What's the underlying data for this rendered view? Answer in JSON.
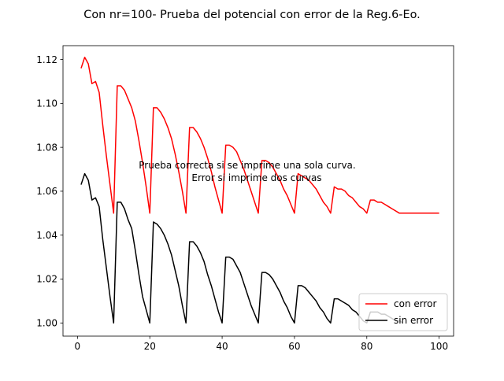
{
  "chart_data": {
    "type": "line",
    "title": "Con nr=100- Prueba del potencial con error de la Reg.6-Eo.",
    "xlabel": "",
    "ylabel": "",
    "xlim": [
      -4,
      104
    ],
    "ylim": [
      0.994,
      1.1263
    ],
    "xticks": [
      0,
      20,
      40,
      60,
      80,
      100
    ],
    "yticks": [
      1.0,
      1.02,
      1.04,
      1.06,
      1.08,
      1.1,
      1.12
    ],
    "ytick_labels": [
      "1.00",
      "1.02",
      "1.04",
      "1.06",
      "1.08",
      "1.10",
      "1.12"
    ],
    "annotation": [
      "Prueba correcta si se imprime una sola curva.",
      "Error si imprime dos curvas"
    ],
    "legend_position": "bottom-right",
    "grid": false,
    "series": [
      {
        "name": "con error",
        "color": "#ff0000",
        "x": [
          1,
          2,
          3,
          4,
          5,
          6,
          7,
          8,
          9,
          10,
          11,
          12,
          13,
          14,
          15,
          16,
          17,
          18,
          19,
          20,
          21,
          22,
          23,
          24,
          25,
          26,
          27,
          28,
          29,
          30,
          31,
          32,
          33,
          34,
          35,
          36,
          37,
          38,
          39,
          40,
          41,
          42,
          43,
          44,
          45,
          46,
          47,
          48,
          49,
          50,
          51,
          52,
          53,
          54,
          55,
          56,
          57,
          58,
          59,
          60,
          61,
          62,
          63,
          64,
          65,
          66,
          67,
          68,
          69,
          70,
          71,
          72,
          73,
          74,
          75,
          76,
          77,
          78,
          79,
          80,
          81,
          82,
          83,
          84,
          85,
          86,
          87,
          88,
          89,
          90,
          91,
          92,
          93,
          94,
          95,
          96,
          97,
          98,
          99,
          100
        ],
        "y": [
          1.116,
          1.121,
          1.118,
          1.109,
          1.11,
          1.105,
          1.09,
          1.076,
          1.063,
          1.05,
          1.108,
          1.108,
          1.106,
          1.102,
          1.098,
          1.092,
          1.083,
          1.073,
          1.062,
          1.05,
          1.098,
          1.098,
          1.096,
          1.093,
          1.089,
          1.084,
          1.077,
          1.069,
          1.06,
          1.05,
          1.089,
          1.089,
          1.087,
          1.084,
          1.08,
          1.075,
          1.069,
          1.062,
          1.056,
          1.05,
          1.081,
          1.081,
          1.08,
          1.078,
          1.074,
          1.07,
          1.065,
          1.06,
          1.055,
          1.05,
          1.074,
          1.074,
          1.073,
          1.071,
          1.068,
          1.065,
          1.061,
          1.058,
          1.054,
          1.05,
          1.068,
          1.067,
          1.066,
          1.065,
          1.063,
          1.061,
          1.058,
          1.055,
          1.053,
          1.05,
          1.062,
          1.061,
          1.061,
          1.06,
          1.058,
          1.057,
          1.055,
          1.053,
          1.052,
          1.05,
          1.056,
          1.056,
          1.055,
          1.055,
          1.054,
          1.053,
          1.052,
          1.051,
          1.05,
          1.05,
          1.05,
          1.05,
          1.05,
          1.05,
          1.05,
          1.05,
          1.05,
          1.05,
          1.05,
          1.05
        ]
      },
      {
        "name": "sin error",
        "color": "#000000",
        "x": [
          1,
          2,
          3,
          4,
          5,
          6,
          7,
          8,
          9,
          10,
          11,
          12,
          13,
          14,
          15,
          16,
          17,
          18,
          19,
          20,
          21,
          22,
          23,
          24,
          25,
          26,
          27,
          28,
          29,
          30,
          31,
          32,
          33,
          34,
          35,
          36,
          37,
          38,
          39,
          40,
          41,
          42,
          43,
          44,
          45,
          46,
          47,
          48,
          49,
          50,
          51,
          52,
          53,
          54,
          55,
          56,
          57,
          58,
          59,
          60,
          61,
          62,
          63,
          64,
          65,
          66,
          67,
          68,
          69,
          70,
          71,
          72,
          73,
          74,
          75,
          76,
          77,
          78,
          79,
          80,
          81,
          82,
          83,
          84,
          85,
          86,
          87,
          88,
          89,
          90
        ],
        "y": [
          1.063,
          1.068,
          1.065,
          1.056,
          1.057,
          1.053,
          1.038,
          1.025,
          1.012,
          1.0,
          1.055,
          1.055,
          1.052,
          1.047,
          1.043,
          1.033,
          1.022,
          1.012,
          1.006,
          1.0,
          1.046,
          1.045,
          1.043,
          1.04,
          1.036,
          1.031,
          1.024,
          1.017,
          1.008,
          1.0,
          1.037,
          1.037,
          1.035,
          1.032,
          1.028,
          1.022,
          1.017,
          1.011,
          1.005,
          1.0,
          1.03,
          1.03,
          1.029,
          1.026,
          1.023,
          1.018,
          1.013,
          1.008,
          1.004,
          1.0,
          1.023,
          1.023,
          1.022,
          1.02,
          1.017,
          1.014,
          1.01,
          1.007,
          1.003,
          1.0,
          1.017,
          1.017,
          1.016,
          1.014,
          1.012,
          1.01,
          1.007,
          1.005,
          1.002,
          1.0,
          1.011,
          1.011,
          1.01,
          1.009,
          1.008,
          1.006,
          1.005,
          1.003,
          1.001,
          1.0,
          1.005,
          1.005,
          1.005,
          1.004,
          1.004,
          1.003,
          1.002,
          1.001,
          1.001,
          1.0
        ]
      }
    ]
  }
}
